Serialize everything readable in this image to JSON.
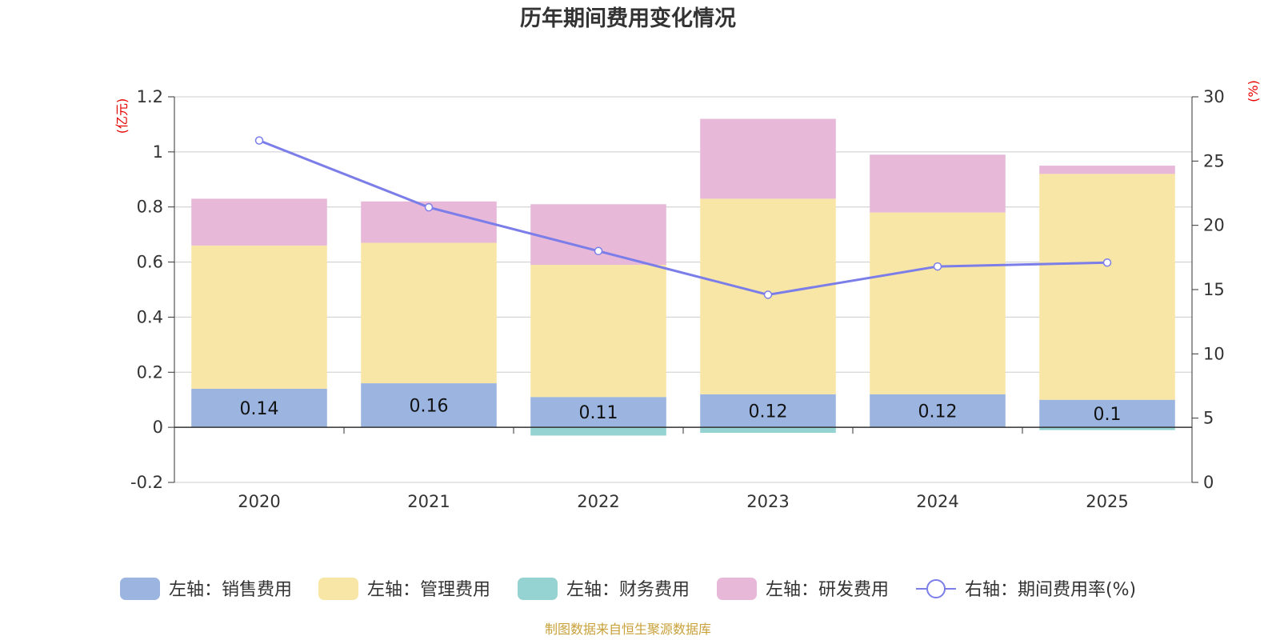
{
  "chart_data": {
    "type": "bar",
    "stacked": true,
    "title": "历年期间费用变化情况",
    "categories": [
      "2020",
      "2021",
      "2022",
      "2023",
      "2024",
      "2025"
    ],
    "left_axis": {
      "unit": "(亿元)",
      "ylim": [
        -0.2,
        1.2
      ],
      "ticks": [
        "1.2",
        "1",
        "0.8",
        "0.6",
        "0.4",
        "0.2",
        "0",
        "-0.2"
      ],
      "tick_values": [
        1.2,
        1.0,
        0.8,
        0.6,
        0.4,
        0.2,
        0,
        -0.2
      ]
    },
    "right_axis": {
      "unit": "(%)",
      "ylim": [
        0,
        30
      ],
      "ticks": [
        "30",
        "25",
        "20",
        "15",
        "10",
        "5",
        "0"
      ],
      "tick_values": [
        30,
        25,
        20,
        15,
        10,
        5,
        0
      ]
    },
    "series": [
      {
        "name": "左轴：销售费用",
        "axis": "left",
        "kind": "bar",
        "color": "#9bb5e0",
        "values": [
          0.14,
          0.16,
          0.11,
          0.12,
          0.12,
          0.1
        ],
        "labels": [
          "0.14",
          "0.16",
          "0.11",
          "0.12",
          "0.12",
          "0.1"
        ]
      },
      {
        "name": "左轴：管理费用",
        "axis": "left",
        "kind": "bar",
        "color": "#f8e6a6",
        "values": [
          0.52,
          0.51,
          0.48,
          0.71,
          0.66,
          0.82
        ]
      },
      {
        "name": "左轴：财务费用",
        "axis": "left",
        "kind": "bar",
        "color": "#95d3d3",
        "values": [
          0.0,
          0.0,
          -0.03,
          -0.02,
          0.0,
          -0.01
        ]
      },
      {
        "name": "左轴：研发费用",
        "axis": "left",
        "kind": "bar",
        "color": "#e8b8d9",
        "values": [
          0.17,
          0.15,
          0.22,
          0.29,
          0.21,
          0.03
        ]
      },
      {
        "name": "右轴：期间费用率(%)",
        "axis": "right",
        "kind": "line",
        "color": "#7b7de8",
        "values": [
          26.6,
          21.4,
          18.0,
          14.6,
          16.8,
          17.1
        ]
      }
    ]
  },
  "footer": {
    "source": "制图数据来自恒生聚源数据库"
  }
}
